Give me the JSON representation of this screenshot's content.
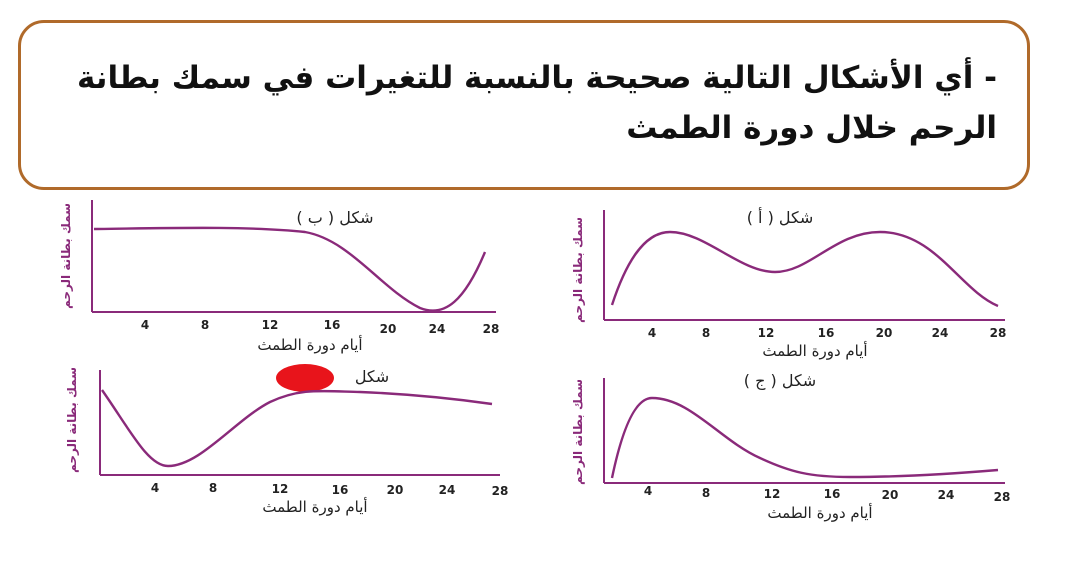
{
  "question": {
    "text": "- أي الأشكال التالية صحيحة بالنسبة للتغيرات في سمك بطانة الرحم خلال دورة الطمث"
  },
  "colors": {
    "border": "#b06a2a",
    "curve": "#8a2a7a",
    "marker": "#e8141b"
  },
  "shapes": {
    "a": {
      "title": "شكل ( أ )",
      "ylabel": "سمك بطانة الرحم",
      "xlabel": "أيام دورة الطمث",
      "ticks": [
        "4",
        "8",
        "12",
        "16",
        "20",
        "24",
        "28"
      ]
    },
    "b": {
      "title": "شكل ( ب )",
      "ylabel": "سمك بطانة الرحم",
      "xlabel": "أيام دورة الطمث",
      "ticks": [
        "4",
        "8",
        "12",
        "16",
        "20",
        "24",
        "28"
      ]
    },
    "c": {
      "title": "شكل ( ج )",
      "ylabel": "سمك بطانة الرحم",
      "xlabel": "أيام دورة الطمث",
      "ticks": [
        "4",
        "8",
        "12",
        "16",
        "20",
        "24",
        "28"
      ]
    },
    "d": {
      "title": "شكل",
      "ylabel": "سمك بطانة الرحم",
      "xlabel": "أيام دورة الطمث",
      "ticks": [
        "4",
        "8",
        "12",
        "16",
        "20",
        "24",
        "28"
      ]
    }
  }
}
